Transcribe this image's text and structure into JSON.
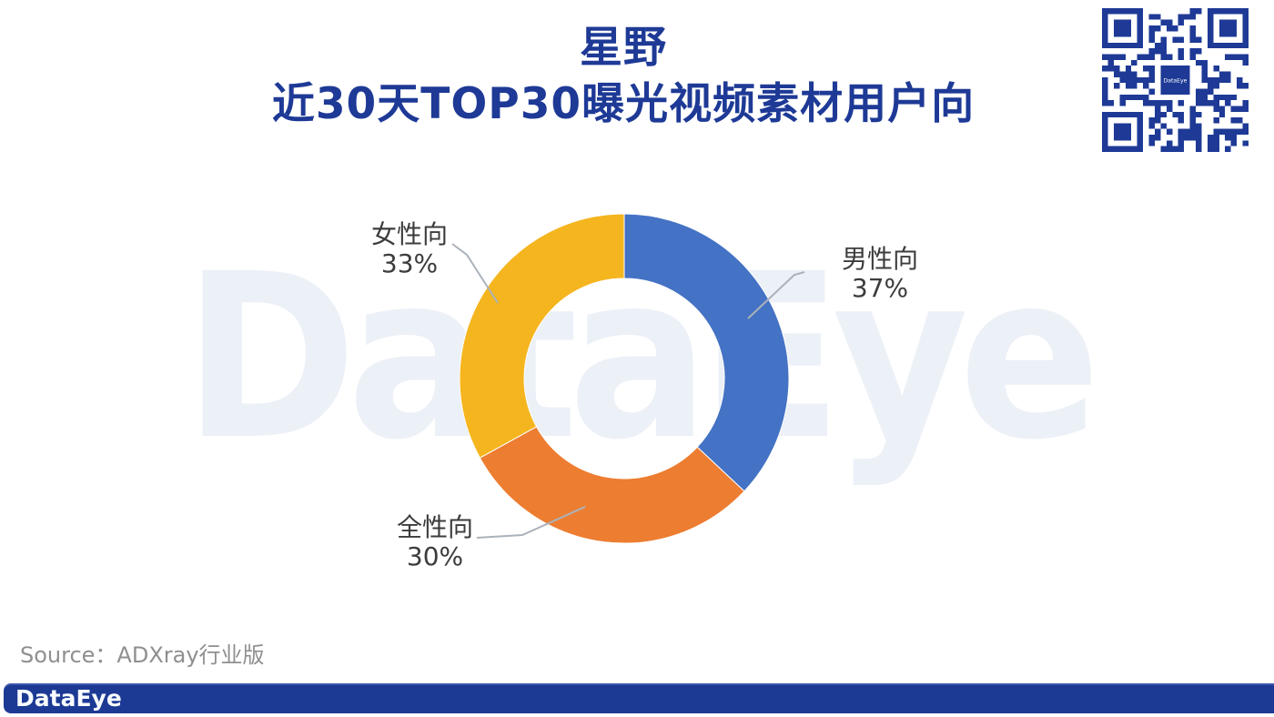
{
  "title": {
    "line1": "星野",
    "line2": "近30天TOP30曝光视频素材用户向",
    "color": "#1E3A96"
  },
  "watermark": {
    "text": "DataEye",
    "color": "#ECF0F7"
  },
  "qr_code": {
    "label": "DataEye",
    "color": "#1E3A96"
  },
  "chart_data": {
    "type": "pie",
    "subtype": "donut",
    "title": "星野 近30天TOP30曝光视频素材用户向",
    "categories": [
      "男性向",
      "全性向",
      "女性向"
    ],
    "values": [
      37,
      30,
      33
    ],
    "unit": "%",
    "colors": [
      "#4472C4",
      "#ED7D31",
      "#F5B51F"
    ],
    "start_angle_deg": 0,
    "direction": "clockwise",
    "inner_radius_ratio": 0.61,
    "legend": "none",
    "labels": [
      {
        "name": "男性向",
        "value": "37%"
      },
      {
        "name": "全性向",
        "value": "30%"
      },
      {
        "name": "女性向",
        "value": "33%"
      }
    ]
  },
  "source": {
    "text": "Source：ADXray行业版"
  },
  "footer": {
    "logo_text": "DataEye",
    "bar_color": "#1C3A94"
  }
}
